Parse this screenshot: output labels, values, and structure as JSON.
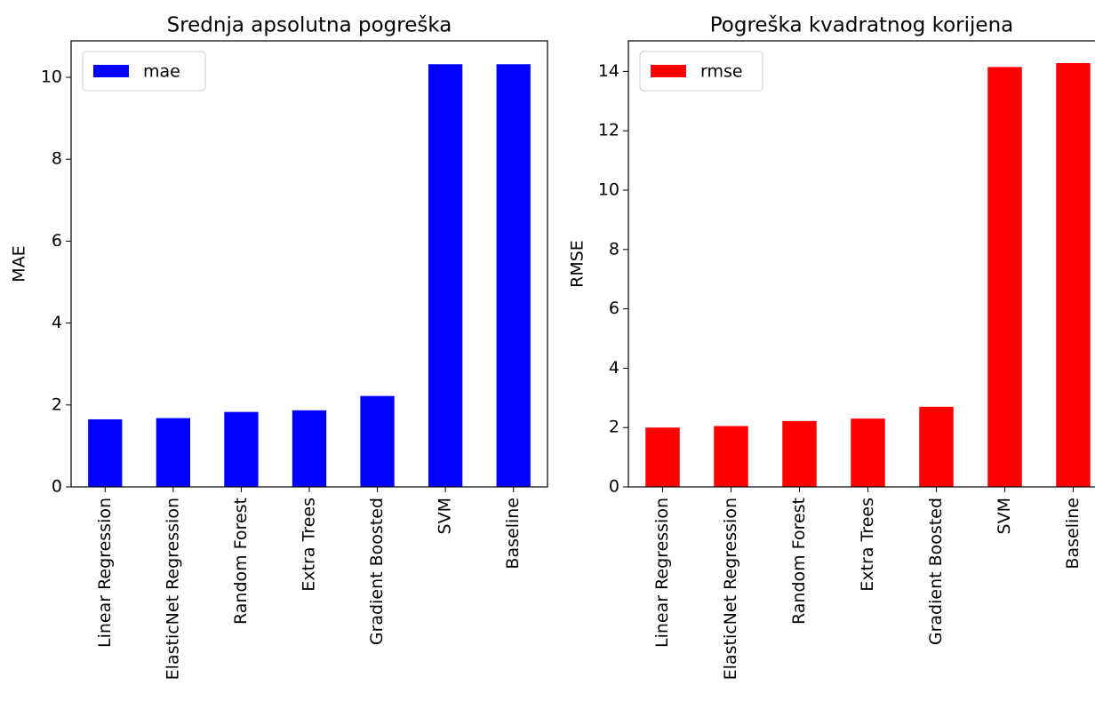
{
  "chart_data": [
    {
      "type": "bar",
      "title": "Srednja apsolutna pogreška",
      "y_label": "MAE",
      "categories": [
        "Linear Regression",
        "ElasticNet Regression",
        "Random Forest",
        "Extra Trees",
        "Gradient Boosted",
        "SVM",
        "Baseline"
      ],
      "series": [
        {
          "name": "mae",
          "color": "#0000ff",
          "values": [
            1.65,
            1.68,
            1.83,
            1.87,
            2.22,
            10.32,
            10.32
          ]
        }
      ],
      "ylim": [
        0,
        10.89
      ],
      "yticks": [
        0,
        2,
        4,
        6,
        8,
        10
      ],
      "legend": "upper left"
    },
    {
      "type": "bar",
      "title": "Pogreška kvadratnog korijena",
      "y_label": "RMSE",
      "categories": [
        "Linear Regression",
        "ElasticNet Regression",
        "Random Forest",
        "Extra Trees",
        "Gradient Boosted",
        "SVM",
        "Baseline"
      ],
      "series": [
        {
          "name": "rmse",
          "color": "#ff0000",
          "values": [
            2.0,
            2.05,
            2.22,
            2.3,
            2.7,
            14.15,
            14.28
          ]
        }
      ],
      "ylim": [
        0,
        15.03
      ],
      "yticks": [
        0,
        2,
        4,
        6,
        8,
        10,
        12,
        14
      ],
      "legend": "upper left"
    }
  ]
}
